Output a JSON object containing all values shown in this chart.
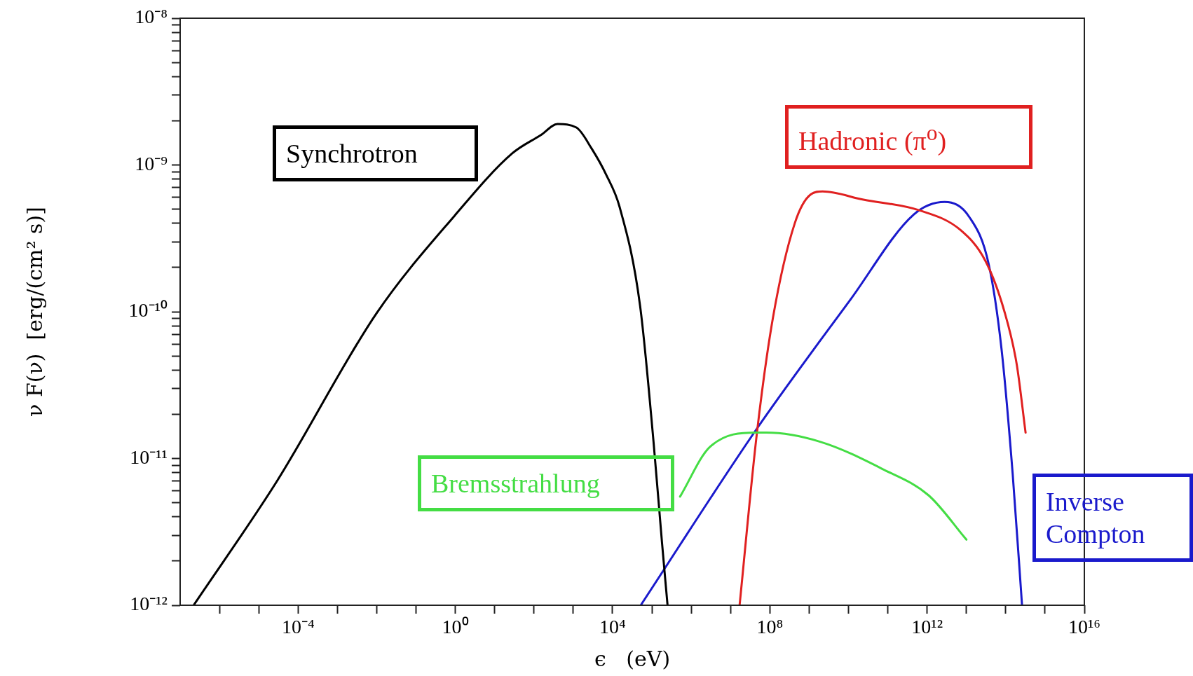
{
  "chart_data": {
    "type": "line",
    "xlabel": "ϵ   (eV)",
    "ylabel": "ν F(ν)  [erg/(cm² s)]",
    "log": "xy",
    "legend": false,
    "marker": "none",
    "line_style": "solid",
    "xlim": [
      1e-07,
      1e+16
    ],
    "ylim": [
      1e-12,
      1e-08
    ],
    "xticks": [
      {
        "value": 1e-06,
        "label": null
      },
      {
        "value": 1e-05,
        "label": null
      },
      {
        "value": 0.0001,
        "label": "10⁻⁴"
      },
      {
        "value": 0.001,
        "label": null
      },
      {
        "value": 0.01,
        "label": null
      },
      {
        "value": 0.1,
        "label": null
      },
      {
        "value": 1,
        "label": "10⁰"
      },
      {
        "value": 10,
        "label": null
      },
      {
        "value": 100,
        "label": null
      },
      {
        "value": 1000,
        "label": null
      },
      {
        "value": 10000.0,
        "label": "10⁴"
      },
      {
        "value": 100000.0,
        "label": null
      },
      {
        "value": 1000000.0,
        "label": null
      },
      {
        "value": 10000000.0,
        "label": null
      },
      {
        "value": 100000000.0,
        "label": "10⁸"
      },
      {
        "value": 1000000000.0,
        "label": null
      },
      {
        "value": 10000000000.0,
        "label": null
      },
      {
        "value": 100000000000.0,
        "label": null
      },
      {
        "value": 1000000000000.0,
        "label": "10¹²"
      },
      {
        "value": 10000000000000.0,
        "label": null
      },
      {
        "value": 100000000000000.0,
        "label": null
      },
      {
        "value": 1000000000000000.0,
        "label": null
      },
      {
        "value": 1e+16,
        "label": "10¹⁶"
      }
    ],
    "yticks": [
      {
        "value": 1e-12,
        "label": "10⁻¹²"
      },
      {
        "value": 2e-12,
        "label": null
      },
      {
        "value": 3e-12,
        "label": null
      },
      {
        "value": 4e-12,
        "label": null
      },
      {
        "value": 5e-12,
        "label": null
      },
      {
        "value": 6e-12,
        "label": null
      },
      {
        "value": 7e-12,
        "label": null
      },
      {
        "value": 8e-12,
        "label": null
      },
      {
        "value": 9e-12,
        "label": null
      },
      {
        "value": 1e-11,
        "label": "10⁻¹¹"
      },
      {
        "value": 2e-11,
        "label": null
      },
      {
        "value": 3e-11,
        "label": null
      },
      {
        "value": 4e-11,
        "label": null
      },
      {
        "value": 5e-11,
        "label": null
      },
      {
        "value": 6e-11,
        "label": null
      },
      {
        "value": 7e-11,
        "label": null
      },
      {
        "value": 8e-11,
        "label": null
      },
      {
        "value": 9e-11,
        "label": null
      },
      {
        "value": 1e-10,
        "label": "10⁻¹⁰"
      },
      {
        "value": 2e-10,
        "label": null
      },
      {
        "value": 3e-10,
        "label": null
      },
      {
        "value": 4e-10,
        "label": null
      },
      {
        "value": 5e-10,
        "label": null
      },
      {
        "value": 6e-10,
        "label": null
      },
      {
        "value": 7e-10,
        "label": null
      },
      {
        "value": 8e-10,
        "label": null
      },
      {
        "value": 9e-10,
        "label": null
      },
      {
        "value": 1e-09,
        "label": "10⁻⁹"
      },
      {
        "value": 2e-09,
        "label": null
      },
      {
        "value": 3e-09,
        "label": null
      },
      {
        "value": 4e-09,
        "label": null
      },
      {
        "value": 5e-09,
        "label": null
      },
      {
        "value": 6e-09,
        "label": null
      },
      {
        "value": 7e-09,
        "label": null
      },
      {
        "value": 8e-09,
        "label": null
      },
      {
        "value": 9e-09,
        "label": null
      },
      {
        "value": 1e-08,
        "label": "10⁻⁸"
      }
    ],
    "series": [
      {
        "name": "Synchrotron",
        "color": "#000000",
        "x": [
          2.2e-07,
          2.8e-05,
          0.01,
          0.95,
          28,
          150,
          400,
          1200,
          2900,
          7000,
          15000.0,
          50000.0,
          110000.0,
          180000.0,
          250000.0
        ],
        "values": [
          1e-12,
          6.9e-12,
          9.8e-11,
          4.5e-10,
          1.2e-09,
          1.6e-09,
          1.9e-09,
          1.8e-09,
          1.3e-09,
          8.5e-10,
          5.2e-10,
          1.1e-10,
          1.3e-11,
          2.7e-12,
          1e-12
        ]
      },
      {
        "name": "Bremsstrahlung",
        "color": "#44dd44",
        "x": [
          520000.0,
          3000000.0,
          47000000.0,
          81000000.0,
          1900000000.0,
          72000000000.0,
          1100000000000.0,
          10000000000000.0
        ],
        "values": [
          5.5e-12,
          1.2e-11,
          1.5e-11,
          1.5e-11,
          1.3e-11,
          8.5e-12,
          5.6e-12,
          2.8e-12
        ]
      },
      {
        "name": "Hadronic (π$^{o}$)",
        "color": "#e02020",
        "x": [
          17000000.0,
          47000000.0,
          120000000.0,
          430000000.0,
          1100000000.0,
          2200000000.0,
          24000000000.0,
          650000000000.0,
          7100000000000.0,
          31000000000000.0,
          93000000000000.0,
          190000000000000.0,
          320000000000000.0
        ],
        "values": [
          1e-12,
          1.5e-11,
          9.1e-11,
          4e-10,
          6.3e-10,
          6.6e-10,
          5.8e-10,
          4.9e-10,
          3.6e-10,
          2.2e-10,
          1e-10,
          4.4e-11,
          1.5e-11
        ]
      },
      {
        "name": "Inverse Compton",
        "color": "#1a1acc",
        "x": [
          52000.0,
          47000000.0,
          11000000000.0,
          460000000000.0,
          2800000000000.0,
          12000000000000.0,
          37000000000000.0,
          78000000000000.0,
          150000000000000.0,
          260000000000000.0
        ],
        "values": [
          1e-12,
          1.6e-11,
          1.2e-10,
          4.6e-10,
          5.6e-10,
          4.4e-10,
          2.1e-10,
          5.6e-11,
          7.9e-12,
          1e-12
        ]
      }
    ]
  }
}
